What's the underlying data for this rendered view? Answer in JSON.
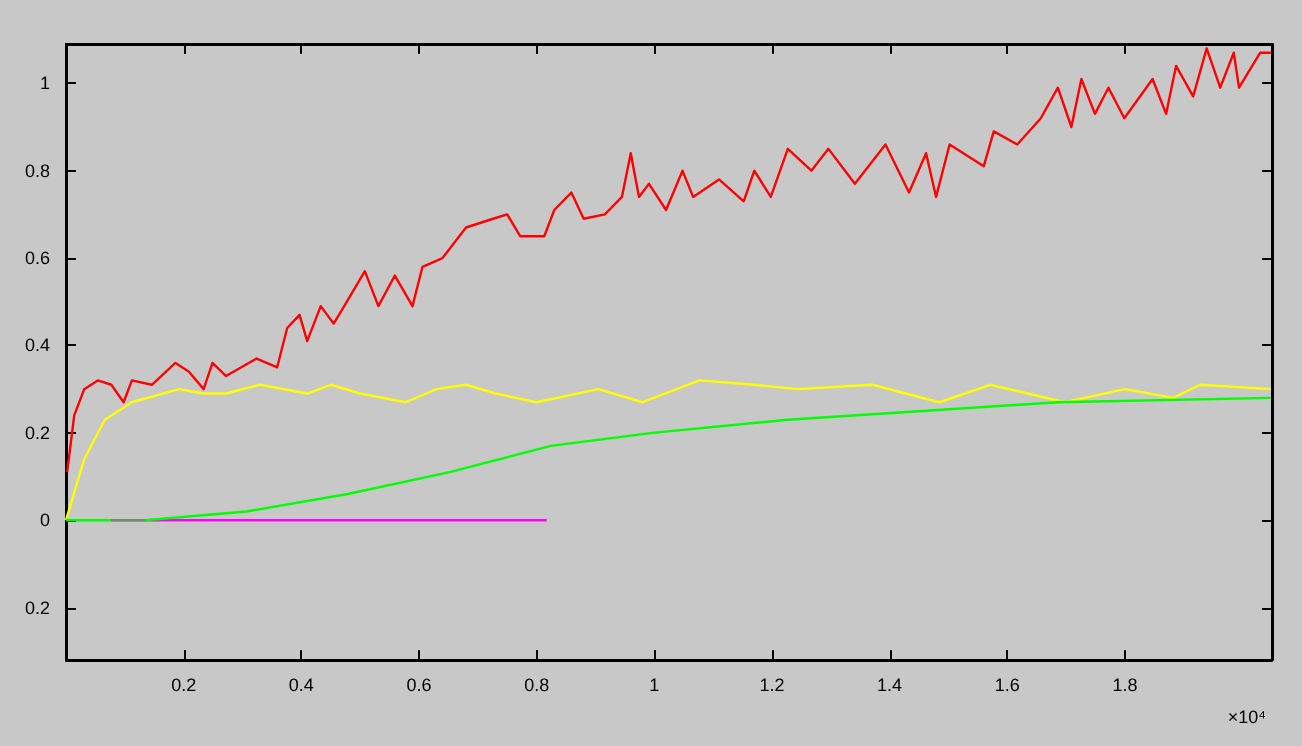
{
  "chart_data": {
    "type": "line",
    "annotations": [
      "×10⁴"
    ],
    "xlim": [
      0,
      2.05
    ],
    "ylim": [
      -0.32,
      1.09
    ],
    "xticks": [
      0.2,
      0.4,
      0.6,
      0.8,
      1,
      1.2,
      1.4,
      1.6,
      1.8
    ],
    "yticks": [
      {
        "value": -0.2,
        "label": "0.2"
      },
      0,
      0.2,
      0.4,
      0.6,
      0.8,
      1
    ],
    "grid": false,
    "marker": "none",
    "line_style": "solid",
    "series": [
      {
        "color": "#ff0000",
        "x": [
          0.002,
          0.014,
          0.031,
          0.054,
          0.077,
          0.098,
          0.112,
          0.146,
          0.186,
          0.209,
          0.234,
          0.249,
          0.272,
          0.324,
          0.359,
          0.376,
          0.397,
          0.41,
          0.433,
          0.455,
          0.473,
          0.508,
          0.531,
          0.559,
          0.589,
          0.606,
          0.64,
          0.68,
          0.726,
          0.75,
          0.772,
          0.813,
          0.83,
          0.859,
          0.88,
          0.916,
          0.945,
          0.96,
          0.974,
          0.991,
          1.02,
          1.048,
          1.066,
          1.11,
          1.152,
          1.17,
          1.198,
          1.227,
          1.267,
          1.296,
          1.341,
          1.393,
          1.433,
          1.462,
          1.479,
          1.502,
          1.56,
          1.577,
          1.617,
          1.657,
          1.686,
          1.709,
          1.726,
          1.749,
          1.772,
          1.799,
          1.847,
          1.87,
          1.887,
          1.916,
          1.939,
          1.962,
          1.985,
          1.994,
          2.03,
          2.048
        ],
        "values": [
          0.11,
          0.24,
          0.3,
          0.32,
          0.31,
          0.27,
          0.32,
          0.31,
          0.36,
          0.34,
          0.3,
          0.36,
          0.33,
          0.37,
          0.35,
          0.44,
          0.47,
          0.41,
          0.49,
          0.45,
          0.49,
          0.57,
          0.49,
          0.56,
          0.49,
          0.58,
          0.6,
          0.67,
          0.69,
          0.7,
          0.65,
          0.65,
          0.71,
          0.75,
          0.69,
          0.7,
          0.74,
          0.84,
          0.74,
          0.77,
          0.71,
          0.8,
          0.74,
          0.78,
          0.73,
          0.8,
          0.74,
          0.85,
          0.8,
          0.85,
          0.77,
          0.86,
          0.75,
          0.84,
          0.74,
          0.86,
          0.81,
          0.89,
          0.86,
          0.92,
          0.99,
          0.9,
          1.01,
          0.93,
          0.99,
          0.92,
          1.01,
          0.93,
          1.04,
          0.97,
          1.08,
          0.99,
          1.07,
          0.99,
          1.07,
          1.07
        ]
      },
      {
        "color": "#ffff00",
        "x": [
          0,
          0.031,
          0.066,
          0.112,
          0.192,
          0.234,
          0.272,
          0.33,
          0.41,
          0.45,
          0.5,
          0.577,
          0.63,
          0.68,
          0.73,
          0.8,
          0.905,
          0.98,
          1.077,
          1.169,
          1.244,
          1.37,
          1.485,
          1.571,
          1.698,
          1.8,
          1.882,
          1.928,
          2.048
        ],
        "values": [
          0,
          0.14,
          0.23,
          0.27,
          0.3,
          0.29,
          0.29,
          0.31,
          0.29,
          0.31,
          0.29,
          0.27,
          0.3,
          0.31,
          0.29,
          0.27,
          0.3,
          0.27,
          0.32,
          0.31,
          0.3,
          0.31,
          0.27,
          0.31,
          0.27,
          0.3,
          0.28,
          0.31,
          0.3
        ]
      },
      {
        "color": "#ff00ff",
        "x": [
          0.134,
          0.817
        ],
        "values": [
          0,
          0
        ]
      },
      {
        "color": "#00ff00",
        "x": [
          0,
          0.076,
          0.134,
          0.307,
          0.479,
          0.652,
          0.824,
          0.997,
          1.227,
          1.456,
          1.686,
          2.048
        ],
        "values": [
          0,
          0,
          0,
          0.02,
          0.06,
          0.11,
          0.17,
          0.2,
          0.23,
          0.25,
          0.27,
          0.28
        ]
      },
      {
        "color": "#808080",
        "x": [
          0.076,
          0.134
        ],
        "values": [
          0,
          0
        ]
      }
    ]
  }
}
